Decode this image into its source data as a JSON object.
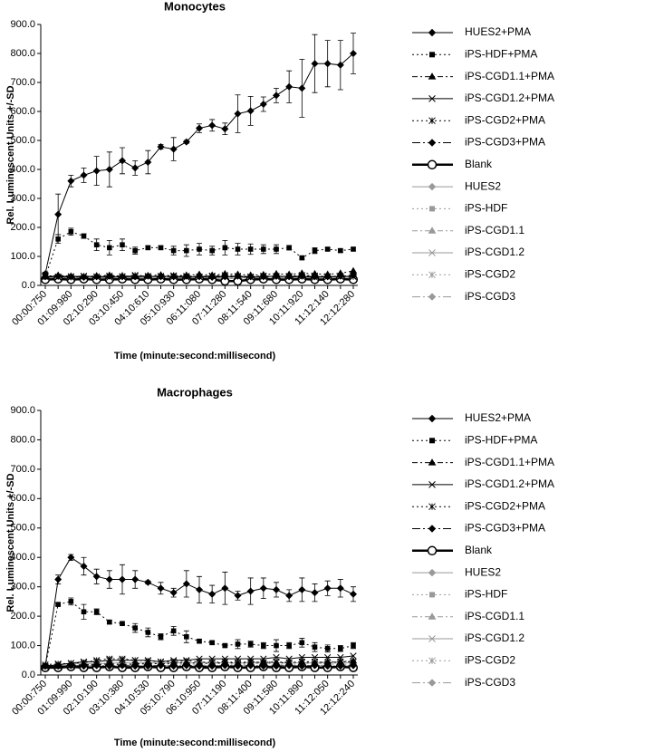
{
  "chart_data": [
    {
      "type": "line",
      "title": "Monocytes",
      "xlabel": "Time (minute:second:millisecond)",
      "ylabel": "Rel. Luminescent Units +/-SD",
      "categories": [
        "00:00:750",
        null,
        "01:09:980",
        null,
        "02:10:290",
        null,
        "03:10:450",
        null,
        "04:10:610",
        null,
        "05:10:930",
        null,
        "06:11:080",
        null,
        "07:11:280",
        null,
        "08:11:540",
        null,
        "09:11:680",
        null,
        "10:11:920",
        null,
        "11:12:140",
        null,
        "12:12:280"
      ],
      "ylim": [
        0,
        900
      ],
      "yticks": [
        {
          "value": 0,
          "label": "0.0"
        },
        {
          "value": 100,
          "label": "100.0"
        },
        {
          "value": 200,
          "label": "200.0"
        },
        {
          "value": 300,
          "label": "300.0"
        },
        {
          "value": 400,
          "label": "400.0"
        },
        {
          "value": 500,
          "label": "500.0"
        },
        {
          "value": 600,
          "label": "600.0"
        },
        {
          "value": 700,
          "label": "700.0"
        },
        {
          "value": 800,
          "label": "800.0"
        },
        {
          "value": 900,
          "label": "900.0"
        }
      ],
      "legend": "right",
      "series": [
        {
          "name": "HUES2+PMA",
          "color": "#000000",
          "dash": "solid",
          "marker": "diamond",
          "values": [
            40,
            245,
            360,
            380,
            395,
            400,
            430,
            405,
            425,
            478,
            470,
            495,
            542,
            552,
            540,
            592,
            602,
            625,
            655,
            685,
            680,
            765,
            765,
            760,
            800
          ],
          "errors": [
            5,
            70,
            20,
            25,
            50,
            60,
            45,
            25,
            40,
            8,
            40,
            5,
            15,
            20,
            20,
            65,
            50,
            25,
            25,
            55,
            100,
            100,
            80,
            85,
            70
          ]
        },
        {
          "name": "iPS-HDF+PMA",
          "color": "#000000",
          "dash": "dot",
          "marker": "square",
          "values": [
            30,
            160,
            185,
            170,
            140,
            130,
            140,
            120,
            130,
            130,
            120,
            120,
            125,
            120,
            130,
            125,
            125,
            125,
            125,
            130,
            95,
            120,
            125,
            120,
            125
          ],
          "errors": [
            5,
            15,
            12,
            8,
            20,
            25,
            20,
            12,
            5,
            5,
            15,
            20,
            20,
            15,
            25,
            20,
            18,
            15,
            15,
            8,
            5,
            10,
            5,
            5,
            5
          ]
        },
        {
          "name": "iPS-CGD1.1+PMA",
          "color": "#000000",
          "dash": "dashdot",
          "marker": "triangle",
          "values": [
            30,
            35,
            32,
            30,
            33,
            35,
            32,
            30,
            34,
            36,
            33,
            35,
            38,
            35,
            40,
            38,
            35,
            37,
            40,
            38,
            42,
            40,
            38,
            42,
            50
          ]
        },
        {
          "name": "iPS-CGD1.2+PMA",
          "color": "#000000",
          "dash": "solid",
          "marker": "x",
          "values": [
            30,
            28,
            30,
            32,
            30,
            28,
            30,
            33,
            30,
            32,
            30,
            28,
            30,
            32,
            30,
            30,
            28,
            30,
            32,
            30,
            30,
            28,
            30,
            30,
            32
          ]
        },
        {
          "name": "iPS-CGD2+PMA",
          "color": "#000000",
          "dash": "dot",
          "marker": "star",
          "values": [
            35,
            30,
            28,
            32,
            30,
            33,
            30,
            35,
            32,
            30,
            34,
            32,
            30,
            33,
            35,
            32,
            30,
            33,
            30,
            32,
            35,
            33,
            30,
            32,
            30
          ]
        },
        {
          "name": "iPS-CGD3+PMA",
          "color": "#000000",
          "dash": "longdashdot",
          "marker": "diamond",
          "values": [
            30,
            32,
            30,
            28,
            30,
            32,
            30,
            30,
            32,
            30,
            30,
            32,
            30,
            28,
            30,
            32,
            30,
            30,
            32,
            30,
            32,
            30,
            30,
            32,
            35
          ]
        },
        {
          "name": "Blank",
          "color": "#000000",
          "dash": "thick",
          "marker": "circle",
          "values": [
            20,
            22,
            20,
            22,
            20,
            20,
            22,
            20,
            20,
            22,
            20,
            20,
            22,
            20,
            15,
            15,
            20,
            22,
            20,
            20,
            22,
            20,
            20,
            22,
            20
          ]
        },
        {
          "name": "HUES2",
          "color": "#999999",
          "dash": "solid",
          "marker": "diamond",
          "values": [
            25,
            25,
            28,
            25,
            27,
            25,
            25,
            28,
            25,
            25,
            27,
            25,
            25,
            28,
            25,
            25,
            27,
            25,
            25,
            28,
            25,
            25,
            27,
            25,
            25
          ]
        },
        {
          "name": "iPS-HDF",
          "color": "#999999",
          "dash": "dot",
          "marker": "square",
          "values": [
            28,
            30,
            28,
            30,
            28,
            30,
            30,
            28,
            30,
            28,
            30,
            30,
            28,
            30,
            28,
            30,
            30,
            28,
            30,
            28,
            30,
            30,
            28,
            30,
            28
          ]
        },
        {
          "name": "iPS-CGD1.1",
          "color": "#999999",
          "dash": "dashdot",
          "marker": "triangle",
          "values": [
            30,
            32,
            30,
            30,
            32,
            30,
            35,
            30,
            32,
            30,
            30,
            32,
            30,
            35,
            30,
            32,
            30,
            30,
            32,
            30,
            35,
            30,
            32,
            30,
            30
          ]
        },
        {
          "name": "iPS-CGD1.2",
          "color": "#999999",
          "dash": "solid",
          "marker": "x",
          "values": [
            30,
            28,
            32,
            30,
            28,
            30,
            32,
            30,
            28,
            30,
            32,
            30,
            28,
            30,
            32,
            30,
            28,
            30,
            32,
            30,
            28,
            30,
            32,
            30,
            28
          ]
        },
        {
          "name": "iPS-CGD2",
          "color": "#999999",
          "dash": "dot",
          "marker": "star",
          "values": [
            25,
            22,
            25,
            28,
            25,
            22,
            25,
            28,
            25,
            22,
            25,
            28,
            25,
            22,
            25,
            28,
            25,
            22,
            25,
            28,
            25,
            22,
            25,
            28,
            25
          ]
        },
        {
          "name": "iPS-CGD3",
          "color": "#999999",
          "dash": "longdashdot",
          "marker": "diamond",
          "values": [
            22,
            25,
            22,
            25,
            22,
            25,
            22,
            25,
            22,
            25,
            22,
            25,
            22,
            25,
            22,
            25,
            22,
            25,
            22,
            25,
            22,
            25,
            22,
            25,
            22
          ]
        }
      ]
    },
    {
      "type": "line",
      "title": "Macrophages",
      "xlabel": "Time (minute:second:millisecond)",
      "ylabel": "Rel. Luminescent Units +/-SD",
      "categories": [
        "00:00:750",
        null,
        "01:09:990",
        null,
        "02:10:190",
        null,
        "03:10:380",
        null,
        "04:10:530",
        null,
        "05:10:790",
        null,
        "06:10:950",
        null,
        "07:11:190",
        null,
        "08:11:400",
        null,
        "09:11:580",
        null,
        "10:11:890",
        null,
        "11:12:050",
        null,
        "12:12:240"
      ],
      "ylim": [
        0,
        900
      ],
      "yticks": [
        {
          "value": 0,
          "label": "0.0"
        },
        {
          "value": 100,
          "label": "100.0"
        },
        {
          "value": 200,
          "label": "200.0"
        },
        {
          "value": 300,
          "label": "300.0"
        },
        {
          "value": 400,
          "label": "400.0"
        },
        {
          "value": 500,
          "label": "500.0"
        },
        {
          "value": 600,
          "label": "600.0"
        },
        {
          "value": 700,
          "label": "700.0"
        },
        {
          "value": 800,
          "label": "800.0"
        },
        {
          "value": 900,
          "label": "900.0"
        }
      ],
      "legend": "right",
      "series": [
        {
          "name": "HUES2+PMA",
          "color": "#000000",
          "dash": "solid",
          "marker": "diamond",
          "values": [
            30,
            325,
            400,
            370,
            335,
            325,
            325,
            325,
            315,
            295,
            280,
            310,
            290,
            275,
            295,
            270,
            285,
            295,
            290,
            270,
            290,
            280,
            295,
            295,
            275
          ],
          "errors": [
            5,
            15,
            10,
            30,
            25,
            30,
            50,
            30,
            5,
            20,
            15,
            45,
            45,
            30,
            55,
            15,
            45,
            35,
            25,
            20,
            40,
            30,
            25,
            30,
            25
          ]
        },
        {
          "name": "iPS-HDF+PMA",
          "color": "#000000",
          "dash": "dot",
          "marker": "square",
          "values": [
            30,
            240,
            250,
            215,
            215,
            180,
            175,
            160,
            145,
            130,
            150,
            130,
            115,
            110,
            100,
            105,
            105,
            100,
            100,
            100,
            110,
            95,
            90,
            90,
            100
          ],
          "errors": [
            5,
            5,
            12,
            25,
            10,
            5,
            5,
            15,
            15,
            10,
            15,
            20,
            5,
            5,
            5,
            15,
            10,
            10,
            20,
            10,
            15,
            15,
            12,
            10,
            10
          ]
        },
        {
          "name": "iPS-CGD1.1+PMA",
          "color": "#000000",
          "dash": "dashdot",
          "marker": "triangle",
          "values": [
            30,
            30,
            32,
            35,
            35,
            38,
            35,
            38,
            40,
            38,
            40,
            42,
            40,
            40,
            42,
            40,
            42,
            45,
            42,
            42,
            45,
            42,
            45,
            45,
            48
          ]
        },
        {
          "name": "iPS-CGD1.2+PMA",
          "color": "#000000",
          "dash": "solid",
          "marker": "x",
          "values": [
            30,
            35,
            40,
            45,
            45,
            50,
            50,
            50,
            50,
            45,
            50,
            50,
            55,
            55,
            55,
            55,
            55,
            55,
            60,
            55,
            60,
            60,
            60,
            60,
            65
          ]
        },
        {
          "name": "iPS-CGD2+PMA",
          "color": "#000000",
          "dash": "dot",
          "marker": "star",
          "values": [
            35,
            38,
            40,
            42,
            50,
            55,
            55,
            50,
            48,
            45,
            45,
            48,
            45,
            42,
            45,
            42,
            45,
            42,
            45,
            42,
            45,
            45,
            42,
            45,
            45
          ]
        },
        {
          "name": "iPS-CGD3+PMA",
          "color": "#000000",
          "dash": "longdashdot",
          "marker": "diamond",
          "values": [
            30,
            30,
            32,
            30,
            32,
            30,
            32,
            30,
            30,
            32,
            30,
            32,
            30,
            30,
            32,
            30,
            32,
            30,
            30,
            32,
            30,
            32,
            30,
            30,
            32
          ]
        },
        {
          "name": "Blank",
          "color": "#000000",
          "dash": "thick",
          "marker": "circle",
          "values": [
            25,
            25,
            28,
            25,
            25,
            28,
            25,
            25,
            28,
            25,
            25,
            28,
            25,
            25,
            28,
            25,
            25,
            28,
            25,
            25,
            28,
            25,
            25,
            28,
            25
          ]
        },
        {
          "name": "HUES2",
          "color": "#999999",
          "dash": "solid",
          "marker": "diamond",
          "values": [
            28,
            30,
            30,
            32,
            30,
            30,
            32,
            30,
            30,
            32,
            30,
            30,
            32,
            30,
            30,
            32,
            30,
            30,
            32,
            30,
            30,
            32,
            30,
            30,
            32
          ]
        },
        {
          "name": "iPS-HDF",
          "color": "#999999",
          "dash": "dot",
          "marker": "square",
          "values": [
            30,
            32,
            30,
            35,
            32,
            30,
            35,
            32,
            30,
            35,
            32,
            30,
            35,
            32,
            30,
            35,
            32,
            30,
            35,
            32,
            30,
            35,
            32,
            30,
            35
          ]
        },
        {
          "name": "iPS-CGD1.1",
          "color": "#999999",
          "dash": "dashdot",
          "marker": "triangle",
          "values": [
            32,
            35,
            38,
            35,
            38,
            40,
            38,
            35,
            38,
            40,
            38,
            35,
            38,
            40,
            38,
            35,
            38,
            40,
            38,
            35,
            38,
            40,
            38,
            35,
            38
          ]
        },
        {
          "name": "iPS-CGD1.2",
          "color": "#999999",
          "dash": "solid",
          "marker": "x",
          "values": [
            30,
            35,
            38,
            40,
            38,
            40,
            42,
            40,
            42,
            40,
            42,
            40,
            42,
            40,
            42,
            40,
            42,
            40,
            42,
            40,
            42,
            40,
            42,
            40,
            42
          ]
        },
        {
          "name": "iPS-CGD2",
          "color": "#999999",
          "dash": "dot",
          "marker": "star",
          "values": [
            25,
            28,
            30,
            28,
            30,
            28,
            30,
            28,
            30,
            28,
            30,
            28,
            30,
            28,
            30,
            28,
            30,
            28,
            30,
            28,
            30,
            28,
            30,
            28,
            30
          ]
        },
        {
          "name": "iPS-CGD3",
          "color": "#999999",
          "dash": "longdashdot",
          "marker": "diamond",
          "values": [
            22,
            25,
            25,
            28,
            25,
            25,
            28,
            25,
            25,
            28,
            25,
            25,
            28,
            25,
            25,
            28,
            25,
            25,
            28,
            25,
            25,
            28,
            25,
            25,
            28
          ]
        }
      ]
    }
  ]
}
